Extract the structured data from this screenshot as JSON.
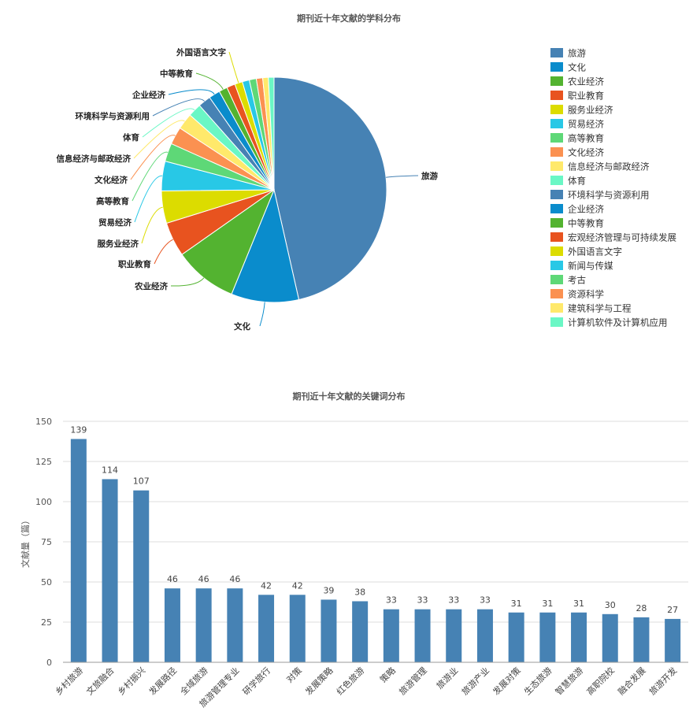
{
  "chart_data": [
    {
      "type": "pie",
      "title": "期刊近十年文献的学科分布",
      "legend_position": "right",
      "categories": [
        "旅游",
        "文化",
        "农业经济",
        "职业教育",
        "服务业经济",
        "贸易经济",
        "高等教育",
        "文化经济",
        "信息经济与邮政经济",
        "体育",
        "环境科学与资源利用",
        "企业经济",
        "中等教育",
        "宏观经济管理与可持续发展",
        "外国语言文字",
        "新闻与传媒",
        "考古",
        "资源科学",
        "建筑科学与工程",
        "计算机软件及计算机应用"
      ],
      "values": [
        46.0,
        9.6,
        9.0,
        4.9,
        4.6,
        4.2,
        2.6,
        2.5,
        2.3,
        1.9,
        1.8,
        1.6,
        1.2,
        1.2,
        1.1,
        1.0,
        1.0,
        0.9,
        0.8,
        0.8
      ],
      "labeled": [
        "旅游",
        "文化",
        "农业经济",
        "职业教育",
        "服务业经济",
        "贸易经济",
        "高等教育",
        "文化经济",
        "信息经济与邮政经济",
        "体育",
        "环境科学与资源利用",
        "企业经济",
        "中等教育",
        "外国语言文字"
      ],
      "colors": [
        "#4682b4",
        "#0a8ccc",
        "#53b330",
        "#e8531f",
        "#dcdc00",
        "#28c8e6",
        "#5ed877",
        "#fb9151",
        "#ffe96b",
        "#6af7c5",
        "#4682b4",
        "#0a8ccc",
        "#53b330",
        "#e8531f",
        "#dcdc00",
        "#28c8e6",
        "#5ed877",
        "#fb9151",
        "#ffe96b",
        "#6af7c5"
      ]
    },
    {
      "type": "bar",
      "title": "期刊近十年文献的关键词分布",
      "ylabel": "文献量（篇）",
      "xlabel": "",
      "ylim": [
        0,
        150
      ],
      "yticks": [
        0,
        25,
        50,
        75,
        100,
        125,
        150
      ],
      "grid": true,
      "bar_color": "#4682b4",
      "categories": [
        "乡村旅游",
        "文旅融合",
        "乡村振兴",
        "发展路径",
        "全域旅游",
        "旅游管理专业",
        "研学旅行",
        "对策",
        "发展策略",
        "红色旅游",
        "策略",
        "旅游管理",
        "旅游业",
        "旅游产业",
        "发展对策",
        "生态旅游",
        "智慧旅游",
        "高职院校",
        "融合发展",
        "旅游开发"
      ],
      "values": [
        139,
        114,
        107,
        46,
        46,
        46,
        42,
        42,
        39,
        38,
        33,
        33,
        33,
        33,
        31,
        31,
        31,
        30,
        28,
        27
      ]
    }
  ]
}
